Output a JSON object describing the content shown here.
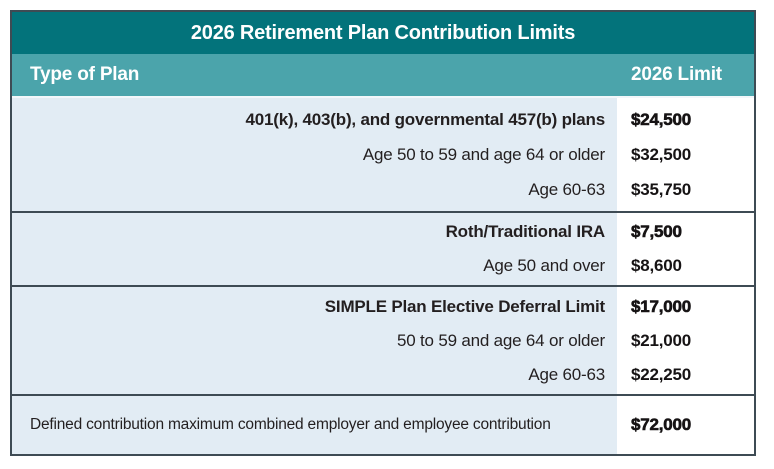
{
  "title": "2026 Retirement Plan Contribution Limits",
  "columns": {
    "plan": "Type of Plan",
    "limit": "2026 Limit"
  },
  "sections": [
    {
      "rows": [
        {
          "plan": "401(k), 403(b), and governmental 457(b) plans",
          "limit": "$24,500"
        },
        {
          "plan": "Age 50 to 59 and age 64 or older",
          "limit": "$32,500"
        },
        {
          "plan": "Age 60-63",
          "limit": "$35,750"
        }
      ]
    },
    {
      "rows": [
        {
          "plan": "Roth/Traditional IRA",
          "limit": "$7,500"
        },
        {
          "plan": "Age 50 and over",
          "limit": "$8,600"
        }
      ]
    },
    {
      "rows": [
        {
          "plan": "SIMPLE Plan Elective Deferral Limit",
          "limit": "$17,000"
        },
        {
          "plan": "50 to 59 and age 64 or older",
          "limit": "$21,000"
        },
        {
          "plan": "Age 60-63",
          "limit": "$22,250"
        }
      ]
    },
    {
      "rows": [
        {
          "plan": "Defined contribution maximum combined employer and employee contribution",
          "limit": "$72,000"
        }
      ]
    }
  ],
  "colors": {
    "title_bar": "#03737B",
    "header_row": "#4BA4AB",
    "plan_column_bg": "#E2ECF4",
    "limit_column_bg": "#FFFFFF",
    "border": "#3E4B54",
    "header_text": "#FFFFFF",
    "body_text": "#231F20"
  },
  "chart_data": {
    "type": "table",
    "title": "2026 Retirement Plan Contribution Limits",
    "columns": [
      "Type of Plan",
      "2026 Limit"
    ],
    "rows": [
      [
        "401(k), 403(b), and governmental 457(b) plans",
        24500
      ],
      [
        "Age 50 to 59 and age 64 or older",
        32500
      ],
      [
        "Age 60-63",
        35750
      ],
      [
        "Roth/Traditional IRA",
        7500
      ],
      [
        "Age 50 and over",
        8600
      ],
      [
        "SIMPLE Plan Elective Deferral Limit",
        17000
      ],
      [
        "50 to 59 and age 64 or older",
        21000
      ],
      [
        "Age 60-63",
        22250
      ],
      [
        "Defined contribution maximum combined employer and employee contribution",
        72000
      ]
    ],
    "groups": [
      {
        "header_row_index": 0,
        "sub_row_indexes": [
          1,
          2
        ]
      },
      {
        "header_row_index": 3,
        "sub_row_indexes": [
          4
        ]
      },
      {
        "header_row_index": 5,
        "sub_row_indexes": [
          6,
          7
        ]
      },
      {
        "header_row_index": 8,
        "sub_row_indexes": []
      }
    ]
  }
}
